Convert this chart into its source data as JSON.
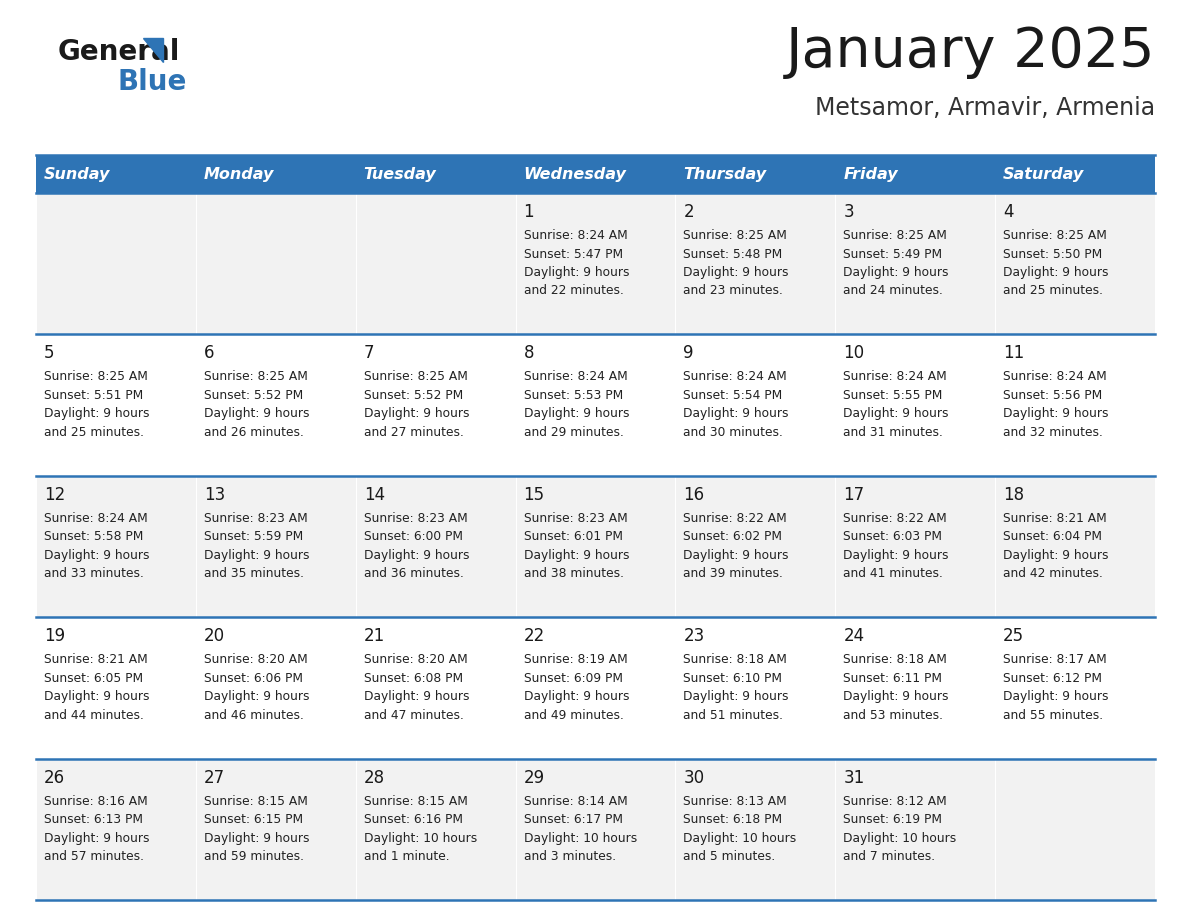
{
  "title": "January 2025",
  "subtitle": "Metsamor, Armavir, Armenia",
  "days_of_week": [
    "Sunday",
    "Monday",
    "Tuesday",
    "Wednesday",
    "Thursday",
    "Friday",
    "Saturday"
  ],
  "header_bg": "#2e74b5",
  "header_text_color": "#ffffff",
  "cell_bg_odd": "#f2f2f2",
  "cell_bg_even": "#ffffff",
  "cell_border_color": "#2e74b5",
  "title_color": "#1a1a1a",
  "subtitle_color": "#333333",
  "text_color": "#222222",
  "day_num_color": "#1a1a1a",
  "logo_text_color": "#1a1a1a",
  "logo_blue_color": "#2e74b5",
  "calendar": [
    [
      {
        "day": null,
        "sunrise": null,
        "sunset": null,
        "daylight_line1": null,
        "daylight_line2": null
      },
      {
        "day": null,
        "sunrise": null,
        "sunset": null,
        "daylight_line1": null,
        "daylight_line2": null
      },
      {
        "day": null,
        "sunrise": null,
        "sunset": null,
        "daylight_line1": null,
        "daylight_line2": null
      },
      {
        "day": "1",
        "sunrise": "Sunrise: 8:24 AM",
        "sunset": "Sunset: 5:47 PM",
        "daylight_line1": "Daylight: 9 hours",
        "daylight_line2": "and 22 minutes."
      },
      {
        "day": "2",
        "sunrise": "Sunrise: 8:25 AM",
        "sunset": "Sunset: 5:48 PM",
        "daylight_line1": "Daylight: 9 hours",
        "daylight_line2": "and 23 minutes."
      },
      {
        "day": "3",
        "sunrise": "Sunrise: 8:25 AM",
        "sunset": "Sunset: 5:49 PM",
        "daylight_line1": "Daylight: 9 hours",
        "daylight_line2": "and 24 minutes."
      },
      {
        "day": "4",
        "sunrise": "Sunrise: 8:25 AM",
        "sunset": "Sunset: 5:50 PM",
        "daylight_line1": "Daylight: 9 hours",
        "daylight_line2": "and 25 minutes."
      }
    ],
    [
      {
        "day": "5",
        "sunrise": "Sunrise: 8:25 AM",
        "sunset": "Sunset: 5:51 PM",
        "daylight_line1": "Daylight: 9 hours",
        "daylight_line2": "and 25 minutes."
      },
      {
        "day": "6",
        "sunrise": "Sunrise: 8:25 AM",
        "sunset": "Sunset: 5:52 PM",
        "daylight_line1": "Daylight: 9 hours",
        "daylight_line2": "and 26 minutes."
      },
      {
        "day": "7",
        "sunrise": "Sunrise: 8:25 AM",
        "sunset": "Sunset: 5:52 PM",
        "daylight_line1": "Daylight: 9 hours",
        "daylight_line2": "and 27 minutes."
      },
      {
        "day": "8",
        "sunrise": "Sunrise: 8:24 AM",
        "sunset": "Sunset: 5:53 PM",
        "daylight_line1": "Daylight: 9 hours",
        "daylight_line2": "and 29 minutes."
      },
      {
        "day": "9",
        "sunrise": "Sunrise: 8:24 AM",
        "sunset": "Sunset: 5:54 PM",
        "daylight_line1": "Daylight: 9 hours",
        "daylight_line2": "and 30 minutes."
      },
      {
        "day": "10",
        "sunrise": "Sunrise: 8:24 AM",
        "sunset": "Sunset: 5:55 PM",
        "daylight_line1": "Daylight: 9 hours",
        "daylight_line2": "and 31 minutes."
      },
      {
        "day": "11",
        "sunrise": "Sunrise: 8:24 AM",
        "sunset": "Sunset: 5:56 PM",
        "daylight_line1": "Daylight: 9 hours",
        "daylight_line2": "and 32 minutes."
      }
    ],
    [
      {
        "day": "12",
        "sunrise": "Sunrise: 8:24 AM",
        "sunset": "Sunset: 5:58 PM",
        "daylight_line1": "Daylight: 9 hours",
        "daylight_line2": "and 33 minutes."
      },
      {
        "day": "13",
        "sunrise": "Sunrise: 8:23 AM",
        "sunset": "Sunset: 5:59 PM",
        "daylight_line1": "Daylight: 9 hours",
        "daylight_line2": "and 35 minutes."
      },
      {
        "day": "14",
        "sunrise": "Sunrise: 8:23 AM",
        "sunset": "Sunset: 6:00 PM",
        "daylight_line1": "Daylight: 9 hours",
        "daylight_line2": "and 36 minutes."
      },
      {
        "day": "15",
        "sunrise": "Sunrise: 8:23 AM",
        "sunset": "Sunset: 6:01 PM",
        "daylight_line1": "Daylight: 9 hours",
        "daylight_line2": "and 38 minutes."
      },
      {
        "day": "16",
        "sunrise": "Sunrise: 8:22 AM",
        "sunset": "Sunset: 6:02 PM",
        "daylight_line1": "Daylight: 9 hours",
        "daylight_line2": "and 39 minutes."
      },
      {
        "day": "17",
        "sunrise": "Sunrise: 8:22 AM",
        "sunset": "Sunset: 6:03 PM",
        "daylight_line1": "Daylight: 9 hours",
        "daylight_line2": "and 41 minutes."
      },
      {
        "day": "18",
        "sunrise": "Sunrise: 8:21 AM",
        "sunset": "Sunset: 6:04 PM",
        "daylight_line1": "Daylight: 9 hours",
        "daylight_line2": "and 42 minutes."
      }
    ],
    [
      {
        "day": "19",
        "sunrise": "Sunrise: 8:21 AM",
        "sunset": "Sunset: 6:05 PM",
        "daylight_line1": "Daylight: 9 hours",
        "daylight_line2": "and 44 minutes."
      },
      {
        "day": "20",
        "sunrise": "Sunrise: 8:20 AM",
        "sunset": "Sunset: 6:06 PM",
        "daylight_line1": "Daylight: 9 hours",
        "daylight_line2": "and 46 minutes."
      },
      {
        "day": "21",
        "sunrise": "Sunrise: 8:20 AM",
        "sunset": "Sunset: 6:08 PM",
        "daylight_line1": "Daylight: 9 hours",
        "daylight_line2": "and 47 minutes."
      },
      {
        "day": "22",
        "sunrise": "Sunrise: 8:19 AM",
        "sunset": "Sunset: 6:09 PM",
        "daylight_line1": "Daylight: 9 hours",
        "daylight_line2": "and 49 minutes."
      },
      {
        "day": "23",
        "sunrise": "Sunrise: 8:18 AM",
        "sunset": "Sunset: 6:10 PM",
        "daylight_line1": "Daylight: 9 hours",
        "daylight_line2": "and 51 minutes."
      },
      {
        "day": "24",
        "sunrise": "Sunrise: 8:18 AM",
        "sunset": "Sunset: 6:11 PM",
        "daylight_line1": "Daylight: 9 hours",
        "daylight_line2": "and 53 minutes."
      },
      {
        "day": "25",
        "sunrise": "Sunrise: 8:17 AM",
        "sunset": "Sunset: 6:12 PM",
        "daylight_line1": "Daylight: 9 hours",
        "daylight_line2": "and 55 minutes."
      }
    ],
    [
      {
        "day": "26",
        "sunrise": "Sunrise: 8:16 AM",
        "sunset": "Sunset: 6:13 PM",
        "daylight_line1": "Daylight: 9 hours",
        "daylight_line2": "and 57 minutes."
      },
      {
        "day": "27",
        "sunrise": "Sunrise: 8:15 AM",
        "sunset": "Sunset: 6:15 PM",
        "daylight_line1": "Daylight: 9 hours",
        "daylight_line2": "and 59 minutes."
      },
      {
        "day": "28",
        "sunrise": "Sunrise: 8:15 AM",
        "sunset": "Sunset: 6:16 PM",
        "daylight_line1": "Daylight: 10 hours",
        "daylight_line2": "and 1 minute."
      },
      {
        "day": "29",
        "sunrise": "Sunrise: 8:14 AM",
        "sunset": "Sunset: 6:17 PM",
        "daylight_line1": "Daylight: 10 hours",
        "daylight_line2": "and 3 minutes."
      },
      {
        "day": "30",
        "sunrise": "Sunrise: 8:13 AM",
        "sunset": "Sunset: 6:18 PM",
        "daylight_line1": "Daylight: 10 hours",
        "daylight_line2": "and 5 minutes."
      },
      {
        "day": "31",
        "sunrise": "Sunrise: 8:12 AM",
        "sunset": "Sunset: 6:19 PM",
        "daylight_line1": "Daylight: 10 hours",
        "daylight_line2": "and 7 minutes."
      },
      {
        "day": null,
        "sunrise": null,
        "sunset": null,
        "daylight_line1": null,
        "daylight_line2": null
      }
    ]
  ]
}
